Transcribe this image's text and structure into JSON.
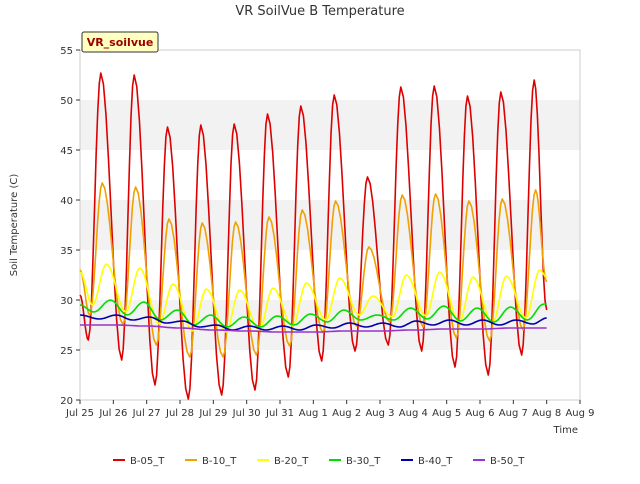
{
  "chart_data": {
    "type": "line",
    "title": "VR SoilVue B Temperature",
    "xlabel": "Time",
    "ylabel": "Soil Temperature (C)",
    "site_label": "VR_soilvue",
    "ylim": [
      20,
      55
    ],
    "y_ticks": [
      20,
      25,
      30,
      35,
      40,
      45,
      50,
      55
    ],
    "xlim": [
      "2024-07-25",
      "2024-08-09"
    ],
    "x_ticks": [
      {
        "date": "2024-07-25",
        "label": "Jul 25"
      },
      {
        "date": "2024-07-26",
        "label": "Jul 26"
      },
      {
        "date": "2024-07-27",
        "label": "Jul 27"
      },
      {
        "date": "2024-07-28",
        "label": "Jul 28"
      },
      {
        "date": "2024-07-29",
        "label": "Jul 29"
      },
      {
        "date": "2024-07-30",
        "label": "Jul 30"
      },
      {
        "date": "2024-07-31",
        "label": "Jul 31"
      },
      {
        "date": "2024-08-01",
        "label": "Aug 1"
      },
      {
        "date": "2024-08-02",
        "label": "Aug 2"
      },
      {
        "date": "2024-08-03",
        "label": "Aug 3"
      },
      {
        "date": "2024-08-04",
        "label": "Aug 4"
      },
      {
        "date": "2024-08-05",
        "label": "Aug 5"
      },
      {
        "date": "2024-08-06",
        "label": "Aug 6"
      },
      {
        "date": "2024-08-07",
        "label": "Aug 7"
      },
      {
        "date": "2024-08-08",
        "label": "Aug 8"
      },
      {
        "date": "2024-08-09",
        "label": "Aug 9"
      }
    ],
    "grid": "horizontal bands",
    "legend_position": "bottom",
    "series": [
      {
        "name": "B-05_T",
        "color": "#dd0000",
        "points": [
          [
            "2024-07-25 00:00",
            30.5
          ],
          [
            "2024-07-25 06:00",
            26.0
          ],
          [
            "2024-07-25 15:00",
            52.7
          ],
          [
            "2024-07-26 06:00",
            24.0
          ],
          [
            "2024-07-26 15:00",
            52.5
          ],
          [
            "2024-07-27 06:00",
            21.5
          ],
          [
            "2024-07-27 15:00",
            47.3
          ],
          [
            "2024-07-28 06:00",
            20.1
          ],
          [
            "2024-07-28 15:00",
            47.5
          ],
          [
            "2024-07-29 06:00",
            20.5
          ],
          [
            "2024-07-29 15:00",
            47.6
          ],
          [
            "2024-07-30 06:00",
            21.0
          ],
          [
            "2024-07-30 15:00",
            48.6
          ],
          [
            "2024-07-31 06:00",
            22.3
          ],
          [
            "2024-07-31 15:00",
            49.4
          ],
          [
            "2024-08-01 06:00",
            23.9
          ],
          [
            "2024-08-01 15:00",
            50.5
          ],
          [
            "2024-08-02 06:00",
            24.9
          ],
          [
            "2024-08-02 15:00",
            42.3
          ],
          [
            "2024-08-03 06:00",
            25.5
          ],
          [
            "2024-08-03 15:00",
            51.3
          ],
          [
            "2024-08-04 06:00",
            24.9
          ],
          [
            "2024-08-04 15:00",
            51.4
          ],
          [
            "2024-08-05 06:00",
            23.3
          ],
          [
            "2024-08-05 15:00",
            50.4
          ],
          [
            "2024-08-06 06:00",
            22.5
          ],
          [
            "2024-08-06 15:00",
            50.8
          ],
          [
            "2024-08-07 06:00",
            24.5
          ],
          [
            "2024-08-07 15:00",
            52.0
          ],
          [
            "2024-08-08 00:00",
            29.0
          ]
        ]
      },
      {
        "name": "B-10_T",
        "color": "#f0a000",
        "points": [
          [
            "2024-07-25 00:00",
            33.0
          ],
          [
            "2024-07-25 07:00",
            28.5
          ],
          [
            "2024-07-25 16:00",
            41.7
          ],
          [
            "2024-07-26 07:00",
            27.5
          ],
          [
            "2024-07-26 16:00",
            41.3
          ],
          [
            "2024-07-27 07:00",
            25.5
          ],
          [
            "2024-07-27 16:00",
            38.1
          ],
          [
            "2024-07-28 07:00",
            24.3
          ],
          [
            "2024-07-28 16:00",
            37.7
          ],
          [
            "2024-07-29 07:00",
            24.3
          ],
          [
            "2024-07-29 16:00",
            37.8
          ],
          [
            "2024-07-30 07:00",
            24.5
          ],
          [
            "2024-07-30 16:00",
            38.3
          ],
          [
            "2024-07-31 07:00",
            25.4
          ],
          [
            "2024-07-31 16:00",
            39.0
          ],
          [
            "2024-08-01 07:00",
            26.7
          ],
          [
            "2024-08-01 16:00",
            39.9
          ],
          [
            "2024-08-02 07:00",
            27.4
          ],
          [
            "2024-08-02 16:00",
            35.3
          ],
          [
            "2024-08-03 07:00",
            27.8
          ],
          [
            "2024-08-03 16:00",
            40.5
          ],
          [
            "2024-08-04 07:00",
            27.3
          ],
          [
            "2024-08-04 16:00",
            40.6
          ],
          [
            "2024-08-05 07:00",
            26.2
          ],
          [
            "2024-08-05 16:00",
            39.9
          ],
          [
            "2024-08-06 07:00",
            25.9
          ],
          [
            "2024-08-06 16:00",
            40.1
          ],
          [
            "2024-08-07 07:00",
            27.0
          ],
          [
            "2024-08-07 16:00",
            41.0
          ],
          [
            "2024-08-08 00:00",
            31.8
          ]
        ]
      },
      {
        "name": "B-20_T",
        "color": "#ffff00",
        "points": [
          [
            "2024-07-25 00:00",
            32.8
          ],
          [
            "2024-07-25 09:00",
            29.5
          ],
          [
            "2024-07-25 19:00",
            33.6
          ],
          [
            "2024-07-26 09:00",
            28.8
          ],
          [
            "2024-07-26 19:00",
            33.2
          ],
          [
            "2024-07-27 09:00",
            27.6
          ],
          [
            "2024-07-27 19:00",
            31.6
          ],
          [
            "2024-07-28 09:00",
            26.9
          ],
          [
            "2024-07-28 19:00",
            31.1
          ],
          [
            "2024-07-29 09:00",
            26.8
          ],
          [
            "2024-07-29 19:00",
            31.0
          ],
          [
            "2024-07-30 09:00",
            27.0
          ],
          [
            "2024-07-30 19:00",
            31.2
          ],
          [
            "2024-07-31 09:00",
            27.4
          ],
          [
            "2024-07-31 19:00",
            31.7
          ],
          [
            "2024-08-01 09:00",
            28.0
          ],
          [
            "2024-08-01 19:00",
            32.2
          ],
          [
            "2024-08-02 09:00",
            28.5
          ],
          [
            "2024-08-02 19:00",
            30.4
          ],
          [
            "2024-08-03 09:00",
            28.3
          ],
          [
            "2024-08-03 19:00",
            32.5
          ],
          [
            "2024-08-04 09:00",
            28.4
          ],
          [
            "2024-08-04 19:00",
            32.8
          ],
          [
            "2024-08-05 09:00",
            27.8
          ],
          [
            "2024-08-05 19:00",
            32.3
          ],
          [
            "2024-08-06 09:00",
            27.7
          ],
          [
            "2024-08-06 19:00",
            32.4
          ],
          [
            "2024-08-07 09:00",
            28.2
          ],
          [
            "2024-08-07 19:00",
            33.0
          ],
          [
            "2024-08-08 00:00",
            32.3
          ]
        ]
      },
      {
        "name": "B-30_T",
        "color": "#00dd00",
        "points": [
          [
            "2024-07-25 00:00",
            29.5
          ],
          [
            "2024-07-25 10:00",
            28.8
          ],
          [
            "2024-07-25 22:00",
            30.0
          ],
          [
            "2024-07-26 10:00",
            28.5
          ],
          [
            "2024-07-26 22:00",
            29.8
          ],
          [
            "2024-07-27 10:00",
            28.0
          ],
          [
            "2024-07-27 22:00",
            29.0
          ],
          [
            "2024-07-28 10:00",
            27.5
          ],
          [
            "2024-07-28 22:00",
            28.5
          ],
          [
            "2024-07-29 10:00",
            27.3
          ],
          [
            "2024-07-29 22:00",
            28.3
          ],
          [
            "2024-07-30 10:00",
            27.3
          ],
          [
            "2024-07-30 22:00",
            28.4
          ],
          [
            "2024-07-31 10:00",
            27.5
          ],
          [
            "2024-07-31 22:00",
            28.6
          ],
          [
            "2024-08-01 10:00",
            27.8
          ],
          [
            "2024-08-01 22:00",
            29.0
          ],
          [
            "2024-08-02 10:00",
            28.0
          ],
          [
            "2024-08-02 22:00",
            28.5
          ],
          [
            "2024-08-03 10:00",
            28.0
          ],
          [
            "2024-08-03 22:00",
            29.2
          ],
          [
            "2024-08-04 10:00",
            28.1
          ],
          [
            "2024-08-04 22:00",
            29.4
          ],
          [
            "2024-08-05 10:00",
            27.9
          ],
          [
            "2024-08-05 22:00",
            29.2
          ],
          [
            "2024-08-06 10:00",
            27.8
          ],
          [
            "2024-08-06 22:00",
            29.3
          ],
          [
            "2024-08-07 10:00",
            28.0
          ],
          [
            "2024-08-07 22:00",
            29.6
          ],
          [
            "2024-08-08 00:00",
            29.6
          ]
        ]
      },
      {
        "name": "B-40_T",
        "color": "#0000aa",
        "points": [
          [
            "2024-07-25 00:00",
            28.5
          ],
          [
            "2024-07-25 14:00",
            28.1
          ],
          [
            "2024-07-26 02:00",
            28.5
          ],
          [
            "2024-07-26 14:00",
            28.0
          ],
          [
            "2024-07-27 02:00",
            28.3
          ],
          [
            "2024-07-27 14:00",
            27.7
          ],
          [
            "2024-07-28 02:00",
            27.9
          ],
          [
            "2024-07-28 14:00",
            27.3
          ],
          [
            "2024-07-29 02:00",
            27.5
          ],
          [
            "2024-07-29 14:00",
            27.0
          ],
          [
            "2024-07-30 02:00",
            27.4
          ],
          [
            "2024-07-30 14:00",
            27.0
          ],
          [
            "2024-07-31 02:00",
            27.4
          ],
          [
            "2024-07-31 14:00",
            27.0
          ],
          [
            "2024-08-01 02:00",
            27.5
          ],
          [
            "2024-08-01 14:00",
            27.2
          ],
          [
            "2024-08-02 02:00",
            27.7
          ],
          [
            "2024-08-02 14:00",
            27.3
          ],
          [
            "2024-08-03 02:00",
            27.7
          ],
          [
            "2024-08-03 14:00",
            27.3
          ],
          [
            "2024-08-04 02:00",
            27.9
          ],
          [
            "2024-08-04 14:00",
            27.5
          ],
          [
            "2024-08-05 02:00",
            28.0
          ],
          [
            "2024-08-05 14:00",
            27.5
          ],
          [
            "2024-08-06 02:00",
            28.0
          ],
          [
            "2024-08-06 14:00",
            27.5
          ],
          [
            "2024-08-07 02:00",
            28.0
          ],
          [
            "2024-08-07 14:00",
            27.6
          ],
          [
            "2024-08-08 00:00",
            28.2
          ]
        ]
      },
      {
        "name": "B-50_T",
        "color": "#9933cc",
        "points": [
          [
            "2024-07-25 00:00",
            27.5
          ],
          [
            "2024-07-26 00:00",
            27.5
          ],
          [
            "2024-07-27 00:00",
            27.4
          ],
          [
            "2024-07-28 00:00",
            27.2
          ],
          [
            "2024-07-29 00:00",
            27.0
          ],
          [
            "2024-07-30 00:00",
            26.9
          ],
          [
            "2024-07-31 00:00",
            26.8
          ],
          [
            "2024-08-01 00:00",
            26.8
          ],
          [
            "2024-08-02 00:00",
            26.9
          ],
          [
            "2024-08-03 00:00",
            26.9
          ],
          [
            "2024-08-04 00:00",
            27.0
          ],
          [
            "2024-08-05 00:00",
            27.1
          ],
          [
            "2024-08-06 00:00",
            27.1
          ],
          [
            "2024-08-07 00:00",
            27.2
          ],
          [
            "2024-08-08 00:00",
            27.2
          ]
        ]
      }
    ]
  }
}
